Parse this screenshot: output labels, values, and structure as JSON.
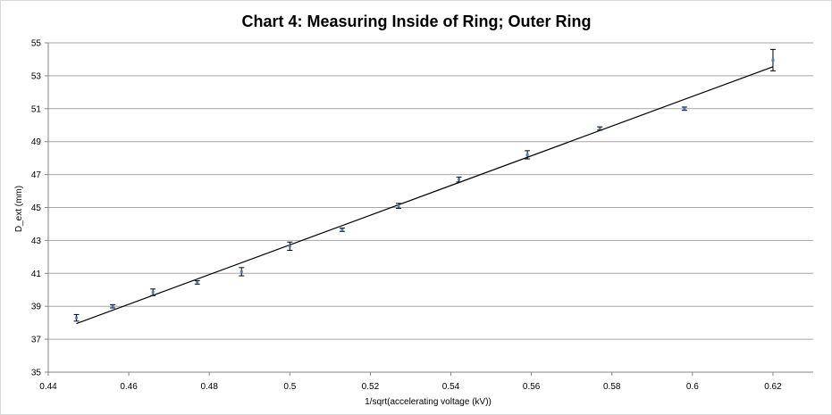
{
  "chart_data": {
    "type": "scatter",
    "title": "Chart 4: Measuring Inside of Ring; Outer Ring",
    "xlabel": "1/sqrt(accelerating voltage (kV))",
    "ylabel": "D_ext (mm)",
    "xlim": [
      0.44,
      0.63
    ],
    "ylim": [
      35,
      55
    ],
    "x_ticks": [
      0.44,
      0.46,
      0.48,
      0.5,
      0.52,
      0.54,
      0.56,
      0.58,
      0.6,
      0.62
    ],
    "x_tick_labels": [
      "0.44",
      "0.46",
      "0.48",
      "0.5",
      "0.52",
      "0.54",
      "0.56",
      "0.58",
      "0.6",
      "0.62"
    ],
    "y_ticks": [
      35,
      37,
      39,
      41,
      43,
      45,
      47,
      49,
      51,
      53,
      55
    ],
    "y_tick_labels": [
      "35",
      "37",
      "39",
      "41",
      "43",
      "45",
      "47",
      "49",
      "51",
      "53",
      "55"
    ],
    "grid": true,
    "legend": "none",
    "series": [
      {
        "x": [
          0.447,
          0.456,
          0.466,
          0.477,
          0.488,
          0.5,
          0.513,
          0.527,
          0.542,
          0.559,
          0.577,
          0.598,
          0.62
        ],
        "y": [
          38.3,
          39.0,
          39.85,
          40.45,
          41.1,
          42.65,
          43.65,
          45.1,
          46.7,
          48.2,
          49.8,
          51.0,
          53.95
        ],
        "error": [
          0.2,
          0.1,
          0.2,
          0.1,
          0.25,
          0.25,
          0.1,
          0.15,
          0.15,
          0.25,
          0.1,
          0.1,
          0.65
        ],
        "marker_color": "#4f81bd"
      }
    ],
    "trendline": {
      "type": "linear",
      "x": [
        0.447,
        0.62
      ],
      "y": [
        37.95,
        53.55
      ],
      "color": "#000000"
    },
    "colors": {
      "gridline": "#a6a6a6",
      "axis": "#868686",
      "error_bar": "#000000"
    }
  }
}
